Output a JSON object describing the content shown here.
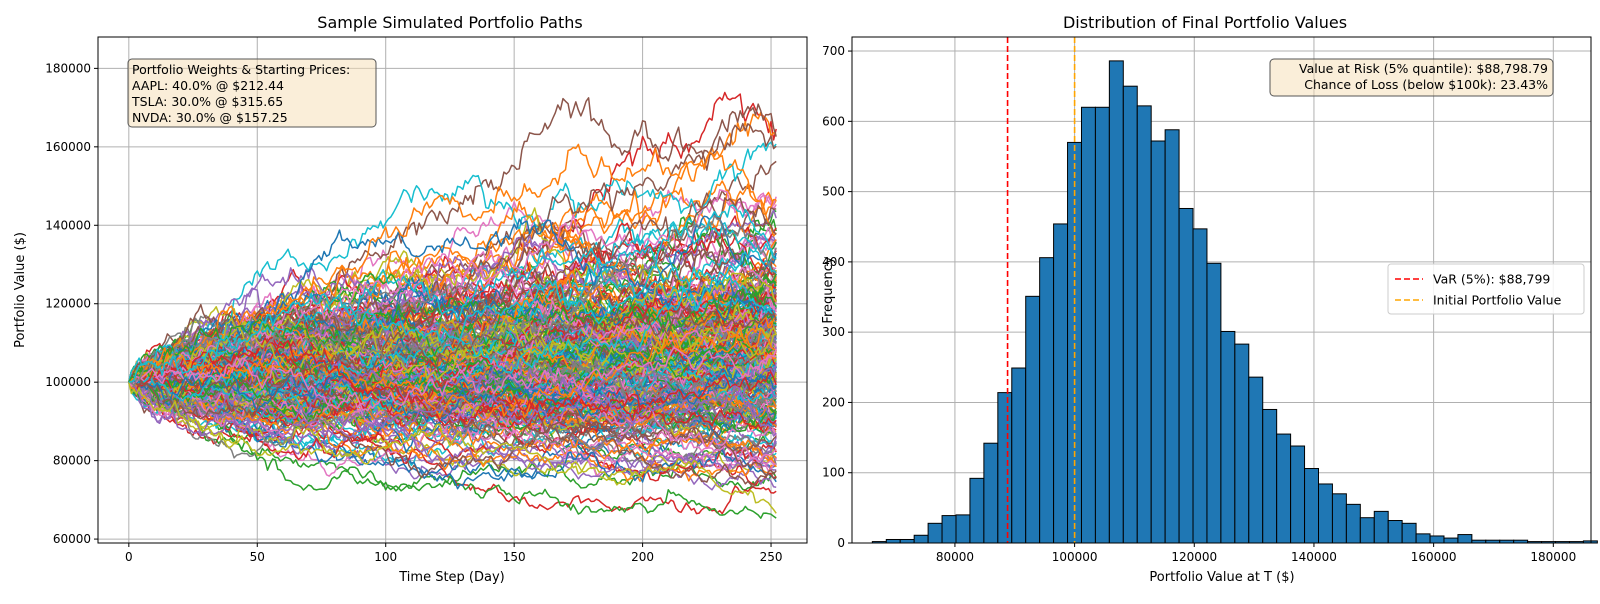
{
  "chart_data": [
    {
      "type": "line",
      "title": "Sample Simulated Portfolio Paths",
      "xlabel": "Time Step (Day)",
      "ylabel": "Portfolio Value ($)",
      "xlim": [
        -12,
        264
      ],
      "ylim": [
        59000,
        188000
      ],
      "xticks": [
        0,
        50,
        100,
        150,
        200,
        250
      ],
      "yticks": [
        60000,
        80000,
        100000,
        120000,
        140000,
        160000,
        180000
      ],
      "grid": true,
      "steps": 252,
      "start_value": 100000,
      "num_paths_drawn": 300,
      "path_summary": {
        "max_final": 182000,
        "min_final": 66000,
        "highest_intermediate": 178000,
        "lowest_intermediate": 65000
      },
      "series_colors": [
        "#1f77b4",
        "#ff7f0e",
        "#2ca02c",
        "#d62728",
        "#9467bd",
        "#8c564b",
        "#e377c2",
        "#7f7f7f",
        "#bcbd22",
        "#17becf"
      ],
      "annotation": {
        "title": "Portfolio Weights & Starting Prices:",
        "lines": [
          "AAPL: 40.0% @ $212.44",
          "TSLA: 30.0% @ $315.65",
          "NVDA: 30.0% @ $157.25"
        ],
        "placement": "top-left"
      }
    },
    {
      "type": "bar",
      "subtype": "histogram",
      "title": "Distribution of Final Portfolio Values",
      "xlabel": "Portfolio Value at T ($)",
      "ylabel": "Frequency",
      "xlim": [
        62800,
        186300
      ],
      "ylim": [
        0,
        720
      ],
      "xticks": [
        80000,
        100000,
        120000,
        140000,
        160000,
        180000
      ],
      "yticks": [
        0,
        100,
        200,
        300,
        400,
        500,
        600,
        700
      ],
      "grid": true,
      "bar_color": "#1f77b4",
      "bin_start": 66200,
      "bin_width": 2330,
      "values": [
        2,
        5,
        5,
        11,
        28,
        39,
        40,
        92,
        142,
        214,
        249,
        351,
        406,
        454,
        570,
        620,
        620,
        686,
        650,
        622,
        572,
        588,
        476,
        447,
        398,
        301,
        283,
        236,
        190,
        155,
        138,
        106,
        84,
        70,
        55,
        36,
        45,
        32,
        28,
        13,
        10,
        7,
        12,
        4,
        4,
        4,
        4,
        2,
        2,
        2,
        2,
        3
      ],
      "vlines": [
        {
          "name": "VaR (5%): $88,799",
          "x": 88799,
          "color": "#ff0000",
          "style": "dashed"
        },
        {
          "name": "Initial Portfolio Value",
          "x": 100000,
          "color": "#ffa500",
          "style": "dashed"
        }
      ],
      "legend_placement": "right",
      "annotation": {
        "lines": [
          "Value at Risk (5% quantile): $88,798.79",
          "Chance of Loss (below $100k): 23.43%"
        ],
        "placement": "top-right"
      }
    }
  ]
}
